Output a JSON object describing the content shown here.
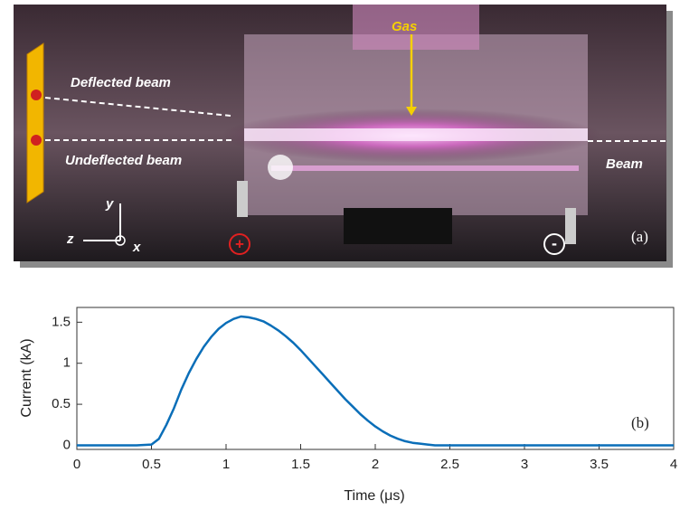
{
  "photo": {
    "gas": "Gas",
    "deflected": "Deflected beam",
    "undeflected": "Undeflected beam",
    "beam": "Beam",
    "panel_label": "(a)",
    "axis_y": "y",
    "axis_z": "z",
    "axis_x": "x",
    "plus": "+",
    "minus": "-"
  },
  "chart_data": {
    "type": "line",
    "xlabel": "Time (μs)",
    "ylabel": "Current (kA)",
    "panel_label": "(b)",
    "color": "#0a6eb8",
    "x": [
      0,
      0.1,
      0.2,
      0.3,
      0.4,
      0.5,
      0.55,
      0.6,
      0.65,
      0.7,
      0.75,
      0.8,
      0.85,
      0.9,
      0.95,
      1.0,
      1.05,
      1.1,
      1.15,
      1.2,
      1.25,
      1.3,
      1.35,
      1.4,
      1.45,
      1.5,
      1.55,
      1.6,
      1.65,
      1.7,
      1.75,
      1.8,
      1.85,
      1.9,
      1.95,
      2.0,
      2.05,
      2.1,
      2.15,
      2.2,
      2.25,
      2.3,
      2.35,
      2.4,
      2.45,
      2.5,
      2.6,
      2.7,
      2.8,
      2.9,
      3.0,
      3.1,
      3.2,
      3.3,
      3.4,
      3.5,
      3.6,
      3.7,
      3.8,
      3.9,
      4.0
    ],
    "values": [
      0,
      0,
      0,
      0,
      0,
      0.01,
      0.08,
      0.25,
      0.45,
      0.68,
      0.88,
      1.05,
      1.2,
      1.32,
      1.42,
      1.49,
      1.54,
      1.57,
      1.56,
      1.54,
      1.51,
      1.46,
      1.4,
      1.33,
      1.25,
      1.16,
      1.06,
      0.96,
      0.86,
      0.76,
      0.66,
      0.56,
      0.47,
      0.38,
      0.3,
      0.23,
      0.17,
      0.12,
      0.08,
      0.05,
      0.03,
      0.02,
      0.01,
      0,
      0,
      0,
      0,
      0,
      0,
      0,
      0,
      0,
      0,
      0,
      0,
      0,
      0,
      0,
      0,
      0,
      0
    ],
    "xlim": [
      0,
      4
    ],
    "ylim": [
      -0.05,
      1.68
    ],
    "xticks": [
      0,
      0.5,
      1,
      1.5,
      2,
      2.5,
      3,
      3.5,
      4
    ],
    "yticks": [
      0,
      0.5,
      1,
      1.5
    ],
    "grid": false
  }
}
